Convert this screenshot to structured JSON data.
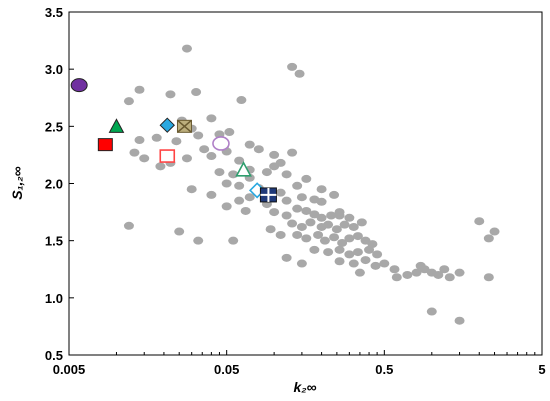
{
  "chart_data": {
    "type": "scatter",
    "title": "",
    "xlabel": "k₂∞",
    "ylabel": "S₁,₂∞",
    "x_scale": "log",
    "xlim": [
      0.005,
      5
    ],
    "ylim": [
      0.5,
      3.5
    ],
    "x_ticks": [
      0.005,
      0.05,
      0.5,
      5
    ],
    "x_tick_labels": [
      "0.005",
      "0.05",
      "0.5",
      "5"
    ],
    "y_ticks": [
      0.5,
      1.0,
      1.5,
      2.0,
      2.5,
      3.0,
      3.5
    ],
    "y_tick_labels": [
      "0.5",
      "1.0",
      "1.5",
      "2.0",
      "2.5",
      "3.0",
      "3.5"
    ],
    "grid": false,
    "legend": "none",
    "colors": {
      "background_points": "#a8a8a8",
      "purple": "#7030a0",
      "green": "#00a651",
      "red": "#ff0000",
      "light_blue": "#29a8e0",
      "khaki": "#bcae7c",
      "navy": "#1f3a7a",
      "open_red": "#ff4444",
      "open_purple": "#b080c8",
      "open_green": "#2e9e6e",
      "open_blue": "#29a8e0"
    },
    "series": [
      {
        "marker": "gray-ellipse",
        "points": [
          [
            0.028,
            3.18
          ],
          [
            0.13,
            3.02
          ],
          [
            0.145,
            2.96
          ],
          [
            0.014,
            2.82
          ],
          [
            0.022,
            2.78
          ],
          [
            0.032,
            2.8
          ],
          [
            0.012,
            2.72
          ],
          [
            0.062,
            2.73
          ],
          [
            0.026,
            2.55
          ],
          [
            0.04,
            2.57
          ],
          [
            0.03,
            2.48
          ],
          [
            0.052,
            2.45
          ],
          [
            0.014,
            2.38
          ],
          [
            0.018,
            2.4
          ],
          [
            0.024,
            2.37
          ],
          [
            0.033,
            2.42
          ],
          [
            0.045,
            2.43
          ],
          [
            0.036,
            2.3
          ],
          [
            0.013,
            2.27
          ],
          [
            0.015,
            2.22
          ],
          [
            0.019,
            2.15
          ],
          [
            0.022,
            2.18
          ],
          [
            0.028,
            2.22
          ],
          [
            0.04,
            2.24
          ],
          [
            0.05,
            2.28
          ],
          [
            0.06,
            2.2
          ],
          [
            0.07,
            2.34
          ],
          [
            0.08,
            2.3
          ],
          [
            0.1,
            2.25
          ],
          [
            0.11,
            2.18
          ],
          [
            0.13,
            2.27
          ],
          [
            0.07,
            2.12
          ],
          [
            0.09,
            2.1
          ],
          [
            0.1,
            2.15
          ],
          [
            0.12,
            2.08
          ],
          [
            0.16,
            2.04
          ],
          [
            0.05,
            2.0
          ],
          [
            0.06,
            1.98
          ],
          [
            0.07,
            2.05
          ],
          [
            0.08,
            1.96
          ],
          [
            0.14,
            1.98
          ],
          [
            0.2,
            1.95
          ],
          [
            0.03,
            1.95
          ],
          [
            0.04,
            1.9
          ],
          [
            0.06,
            1.85
          ],
          [
            0.07,
            1.88
          ],
          [
            0.09,
            1.82
          ],
          [
            0.12,
            1.85
          ],
          [
            0.15,
            1.88
          ],
          [
            0.18,
            1.86
          ],
          [
            0.2,
            1.84
          ],
          [
            0.24,
            1.9
          ],
          [
            0.1,
            1.75
          ],
          [
            0.12,
            1.72
          ],
          [
            0.14,
            1.78
          ],
          [
            0.16,
            1.76
          ],
          [
            0.18,
            1.73
          ],
          [
            0.2,
            1.7
          ],
          [
            0.23,
            1.72
          ],
          [
            0.26,
            1.75
          ],
          [
            0.3,
            1.7
          ],
          [
            0.05,
            1.8
          ],
          [
            0.066,
            1.76
          ],
          [
            0.13,
            1.65
          ],
          [
            0.15,
            1.62
          ],
          [
            0.17,
            1.66
          ],
          [
            0.2,
            1.62
          ],
          [
            0.22,
            1.64
          ],
          [
            0.25,
            1.6
          ],
          [
            0.28,
            1.64
          ],
          [
            0.32,
            1.62
          ],
          [
            0.36,
            1.66
          ],
          [
            0.14,
            1.55
          ],
          [
            0.16,
            1.52
          ],
          [
            0.19,
            1.55
          ],
          [
            0.21,
            1.5
          ],
          [
            0.24,
            1.53
          ],
          [
            0.27,
            1.48
          ],
          [
            0.3,
            1.52
          ],
          [
            0.34,
            1.54
          ],
          [
            0.38,
            1.5
          ],
          [
            0.42,
            1.47
          ],
          [
            0.012,
            1.63
          ],
          [
            0.025,
            1.58
          ],
          [
            0.055,
            1.5
          ],
          [
            0.033,
            1.5
          ],
          [
            0.18,
            1.42
          ],
          [
            0.22,
            1.4
          ],
          [
            0.26,
            1.42
          ],
          [
            0.3,
            1.38
          ],
          [
            0.34,
            1.4
          ],
          [
            0.4,
            1.42
          ],
          [
            0.45,
            1.38
          ],
          [
            0.12,
            1.35
          ],
          [
            0.15,
            1.3
          ],
          [
            0.26,
            1.32
          ],
          [
            0.32,
            1.3
          ],
          [
            0.38,
            1.33
          ],
          [
            0.44,
            1.28
          ],
          [
            0.5,
            1.3
          ],
          [
            0.6,
            1.18
          ],
          [
            0.7,
            1.2
          ],
          [
            0.8,
            1.22
          ],
          [
            0.9,
            1.25
          ],
          [
            1.0,
            1.22
          ],
          [
            1.1,
            1.2
          ],
          [
            1.3,
            1.18
          ],
          [
            1.5,
            1.22
          ],
          [
            0.85,
            1.28
          ],
          [
            1.2,
            1.25
          ],
          [
            2.3,
            1.18
          ],
          [
            2.0,
            1.67
          ],
          [
            2.5,
            1.58
          ],
          [
            2.3,
            1.52
          ],
          [
            1.0,
            0.88
          ],
          [
            1.5,
            0.8
          ],
          [
            0.055,
            2.08
          ],
          [
            0.045,
            2.1
          ],
          [
            0.085,
            1.92
          ],
          [
            0.11,
            1.92
          ],
          [
            0.095,
            1.6
          ],
          [
            0.11,
            1.55
          ],
          [
            0.26,
            1.72
          ],
          [
            0.58,
            1.25
          ],
          [
            0.35,
            1.22
          ],
          [
            0.048,
            2.32
          ]
        ]
      },
      {
        "marker": "circle",
        "style": "filled",
        "color": "purple",
        "points": [
          [
            0.0058,
            2.86
          ]
        ]
      },
      {
        "marker": "triangle",
        "style": "filled",
        "color": "green",
        "points": [
          [
            0.01,
            2.5
          ]
        ]
      },
      {
        "marker": "square",
        "style": "filled",
        "color": "red",
        "points": [
          [
            0.0085,
            2.34
          ]
        ]
      },
      {
        "marker": "diamond",
        "style": "filled",
        "color": "light_blue",
        "points": [
          [
            0.021,
            2.51
          ]
        ]
      },
      {
        "marker": "x-square",
        "style": "filled",
        "color": "khaki",
        "points": [
          [
            0.027,
            2.5
          ]
        ]
      },
      {
        "marker": "square",
        "style": "open",
        "color": "open_red",
        "points": [
          [
            0.021,
            2.24
          ]
        ]
      },
      {
        "marker": "circle",
        "style": "open",
        "color": "open_purple",
        "points": [
          [
            0.046,
            2.35
          ]
        ]
      },
      {
        "marker": "triangle",
        "style": "open",
        "color": "open_green",
        "points": [
          [
            0.064,
            2.12
          ]
        ]
      },
      {
        "marker": "diamond",
        "style": "open",
        "color": "open_blue",
        "points": [
          [
            0.078,
            1.94
          ]
        ]
      },
      {
        "marker": "cross-square",
        "style": "filled",
        "color": "navy",
        "points": [
          [
            0.092,
            1.9
          ]
        ]
      }
    ]
  }
}
